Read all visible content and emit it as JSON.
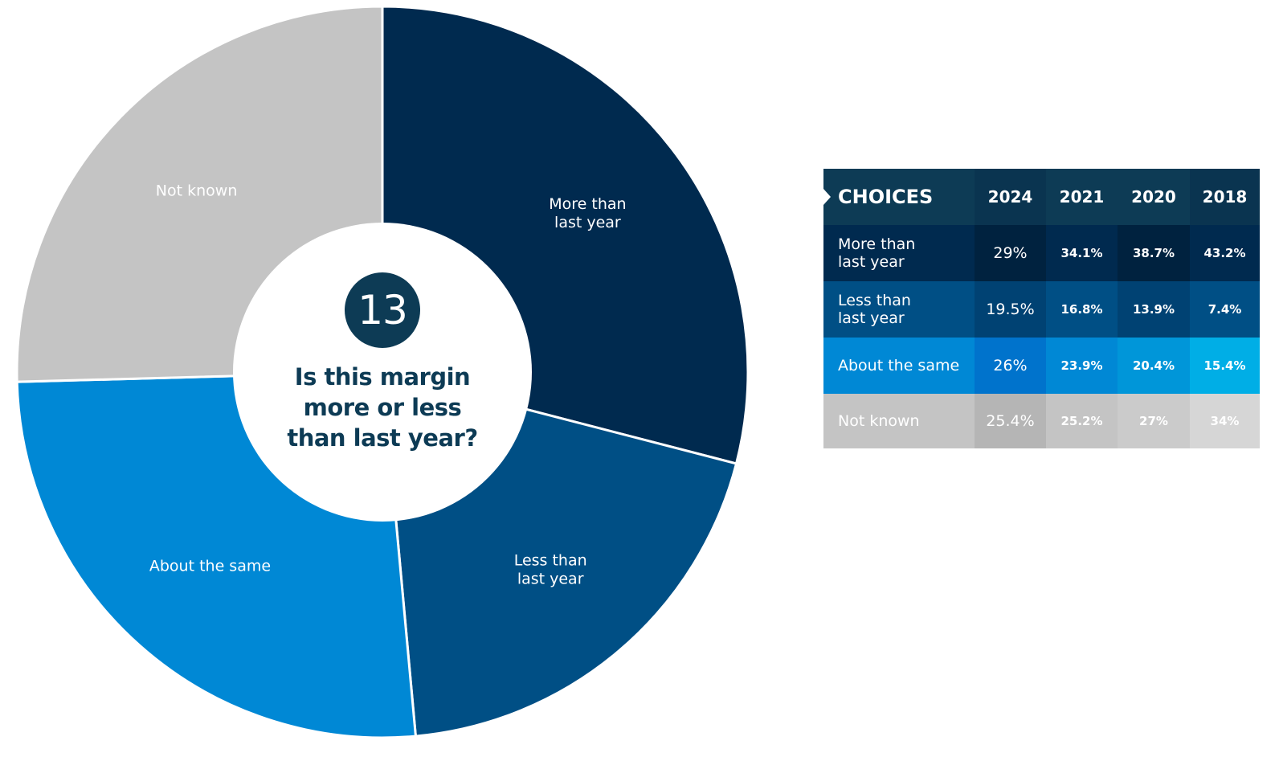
{
  "chart_data": {
    "type": "pie",
    "question_number": "13",
    "title": "Is this margin more or less than last year?",
    "slices": [
      {
        "label": "More than last year",
        "value": 29,
        "color": "#002a4f"
      },
      {
        "label": "Less than last year",
        "value": 19.5,
        "color": "#004f85"
      },
      {
        "label": "About the same",
        "value": 26,
        "color": "#0088d5"
      },
      {
        "label": "Not known",
        "value": 25.4,
        "color": "#c4c4c4"
      }
    ]
  },
  "table": {
    "header": {
      "label": "CHOICES",
      "years": [
        "2024",
        "2021",
        "2020",
        "2018"
      ]
    },
    "rows": [
      {
        "label": "More than\nlast year",
        "values": [
          "29%",
          "34.1%",
          "38.7%",
          "43.2%"
        ]
      },
      {
        "label": "Less than\nlast year",
        "values": [
          "19.5%",
          "16.8%",
          "13.9%",
          "7.4%"
        ]
      },
      {
        "label": "About the same",
        "values": [
          "26%",
          "23.9%",
          "20.4%",
          "15.4%"
        ]
      },
      {
        "label": "Not known",
        "values": [
          "25.4%",
          "25.2%",
          "27%",
          "34%"
        ]
      }
    ],
    "colors": {
      "header": [
        "#0d3b55",
        "#0a3450",
        "#0d3b55",
        "#0d3b55",
        "#0a3450"
      ],
      "row0": [
        "#002a4f",
        "#00223f",
        "#002a4f",
        "#00223f",
        "#002a4f"
      ],
      "row1": [
        "#004f85",
        "#004273",
        "#004f85",
        "#004273",
        "#004f85"
      ],
      "row2": [
        "#0088d5",
        "#0073cc",
        "#0088d5",
        "#0096d9",
        "#00aee6"
      ],
      "row3": [
        "#c4c4c4",
        "#b5b5b5",
        "#c4c4c4",
        "#cbcbcb",
        "#d6d6d6"
      ]
    }
  }
}
